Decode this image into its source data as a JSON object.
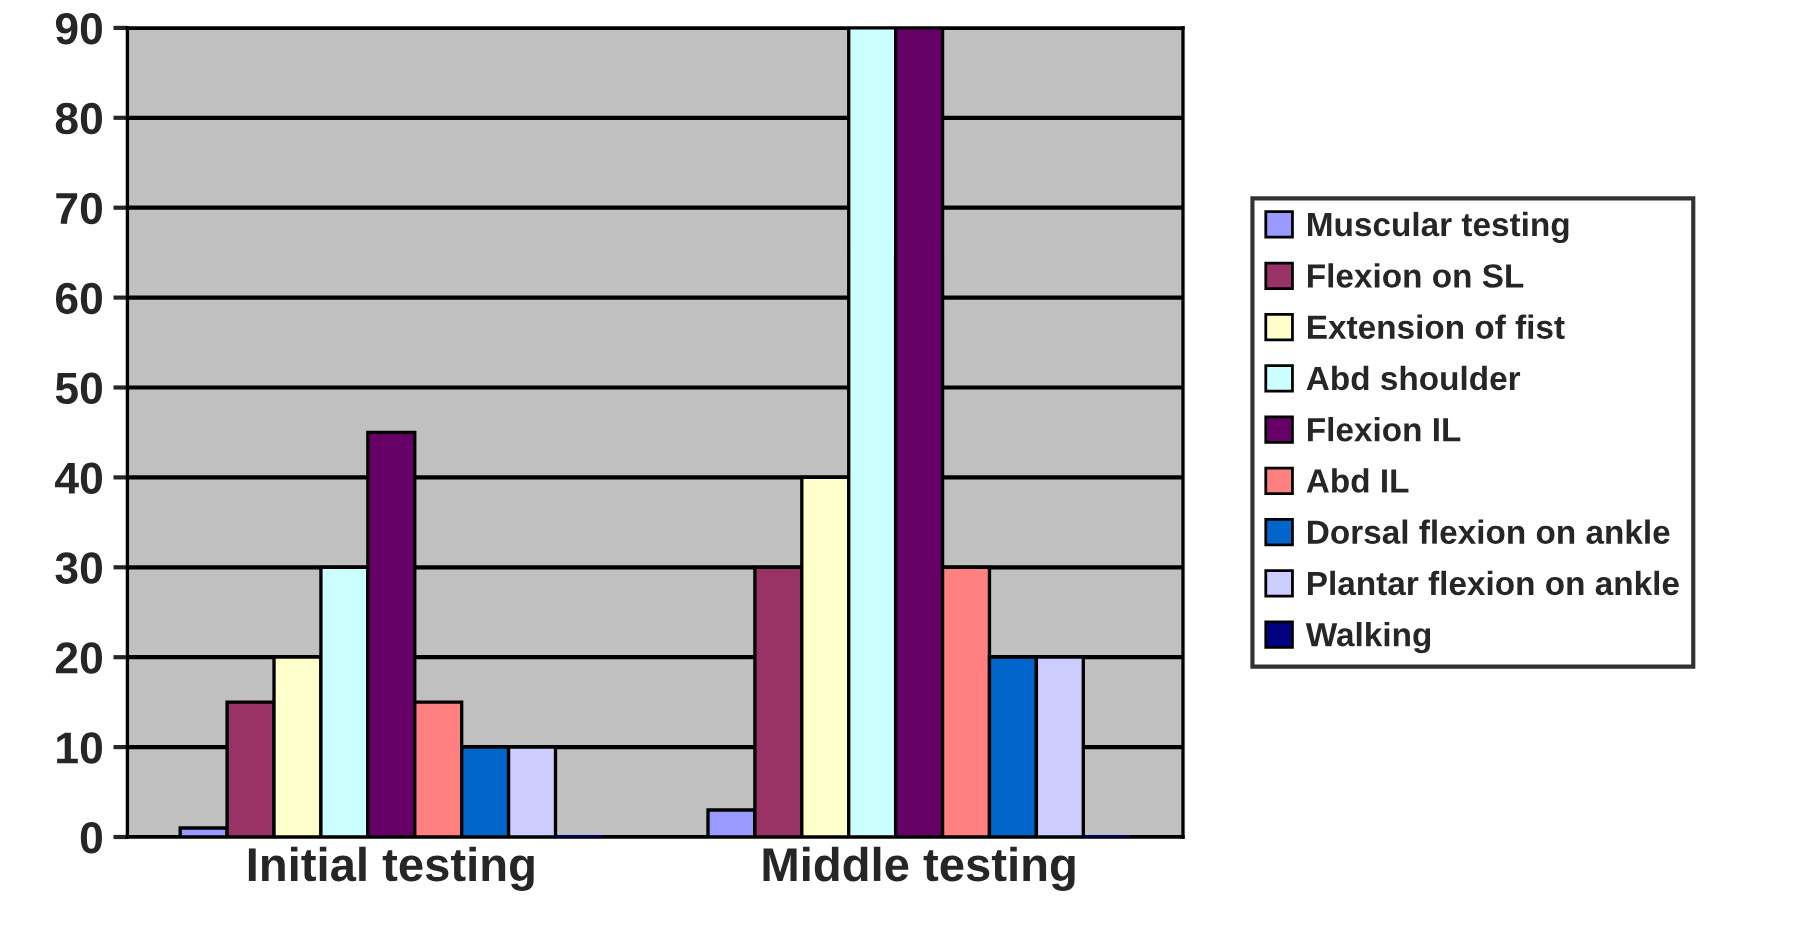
{
  "chart_data": {
    "type": "bar",
    "categories": [
      "Initial testing",
      "Middle testing"
    ],
    "series": [
      {
        "name": "Muscular testing",
        "color": "#9999ff",
        "values": [
          1,
          3
        ]
      },
      {
        "name": "Flexion on SL",
        "color": "#993366",
        "values": [
          15,
          30
        ]
      },
      {
        "name": "Extension of fist",
        "color": "#ffffcc",
        "values": [
          20,
          40
        ]
      },
      {
        "name": "Abd shoulder",
        "color": "#ccffff",
        "values": [
          30,
          90
        ]
      },
      {
        "name": "Flexion IL",
        "color": "#660066",
        "values": [
          45,
          90
        ]
      },
      {
        "name": "Abd IL",
        "color": "#ff8080",
        "values": [
          15,
          30
        ]
      },
      {
        "name": "Dorsal flexion on ankle",
        "color": "#0066cc",
        "values": [
          10,
          20
        ]
      },
      {
        "name": "Plantar flexion on ankle",
        "color": "#ccccff",
        "values": [
          10,
          20
        ]
      },
      {
        "name": "Walking",
        "color": "#000080",
        "values": [
          0,
          0
        ]
      }
    ],
    "ylim": [
      0,
      90
    ],
    "yticks": [
      0,
      10,
      20,
      30,
      40,
      50,
      60,
      70,
      80,
      90
    ],
    "grid": "y",
    "legend": "right"
  }
}
